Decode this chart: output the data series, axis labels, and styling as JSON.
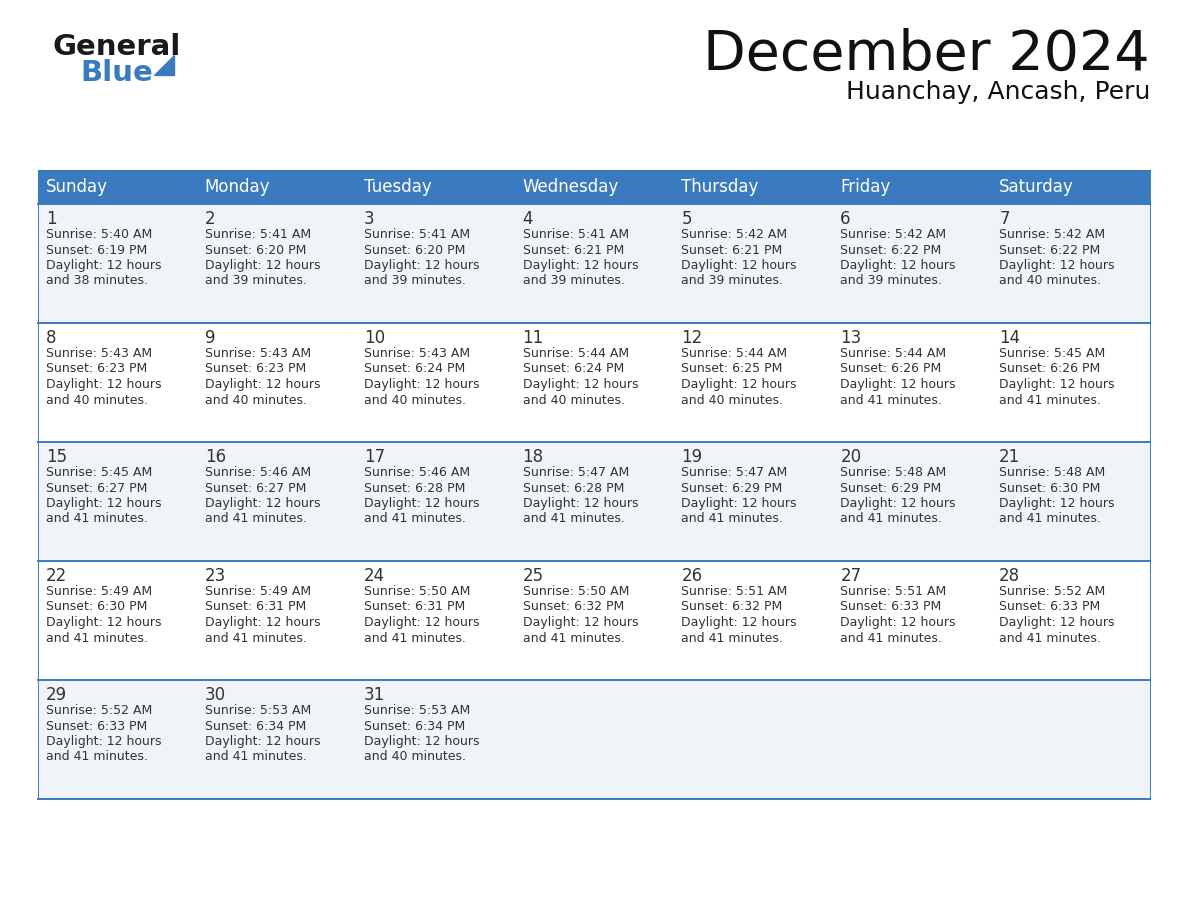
{
  "title": "December 2024",
  "subtitle": "Huanchay, Ancash, Peru",
  "header_color": "#3a7bbf",
  "header_text_color": "#ffffff",
  "bg_color": "#ffffff",
  "cell_bg_even": "#f0f4f8",
  "cell_bg_odd": "#ffffff",
  "border_color": "#3a7bbf",
  "text_color": "#333333",
  "day_names": [
    "Sunday",
    "Monday",
    "Tuesday",
    "Wednesday",
    "Thursday",
    "Friday",
    "Saturday"
  ],
  "weeks": [
    [
      {
        "day": 1,
        "sunrise": "5:40 AM",
        "sunset": "6:19 PM",
        "daylight": "12 hours and 38 minutes."
      },
      {
        "day": 2,
        "sunrise": "5:41 AM",
        "sunset": "6:20 PM",
        "daylight": "12 hours and 39 minutes."
      },
      {
        "day": 3,
        "sunrise": "5:41 AM",
        "sunset": "6:20 PM",
        "daylight": "12 hours and 39 minutes."
      },
      {
        "day": 4,
        "sunrise": "5:41 AM",
        "sunset": "6:21 PM",
        "daylight": "12 hours and 39 minutes."
      },
      {
        "day": 5,
        "sunrise": "5:42 AM",
        "sunset": "6:21 PM",
        "daylight": "12 hours and 39 minutes."
      },
      {
        "day": 6,
        "sunrise": "5:42 AM",
        "sunset": "6:22 PM",
        "daylight": "12 hours and 39 minutes."
      },
      {
        "day": 7,
        "sunrise": "5:42 AM",
        "sunset": "6:22 PM",
        "daylight": "12 hours and 40 minutes."
      }
    ],
    [
      {
        "day": 8,
        "sunrise": "5:43 AM",
        "sunset": "6:23 PM",
        "daylight": "12 hours and 40 minutes."
      },
      {
        "day": 9,
        "sunrise": "5:43 AM",
        "sunset": "6:23 PM",
        "daylight": "12 hours and 40 minutes."
      },
      {
        "day": 10,
        "sunrise": "5:43 AM",
        "sunset": "6:24 PM",
        "daylight": "12 hours and 40 minutes."
      },
      {
        "day": 11,
        "sunrise": "5:44 AM",
        "sunset": "6:24 PM",
        "daylight": "12 hours and 40 minutes."
      },
      {
        "day": 12,
        "sunrise": "5:44 AM",
        "sunset": "6:25 PM",
        "daylight": "12 hours and 40 minutes."
      },
      {
        "day": 13,
        "sunrise": "5:44 AM",
        "sunset": "6:26 PM",
        "daylight": "12 hours and 41 minutes."
      },
      {
        "day": 14,
        "sunrise": "5:45 AM",
        "sunset": "6:26 PM",
        "daylight": "12 hours and 41 minutes."
      }
    ],
    [
      {
        "day": 15,
        "sunrise": "5:45 AM",
        "sunset": "6:27 PM",
        "daylight": "12 hours and 41 minutes."
      },
      {
        "day": 16,
        "sunrise": "5:46 AM",
        "sunset": "6:27 PM",
        "daylight": "12 hours and 41 minutes."
      },
      {
        "day": 17,
        "sunrise": "5:46 AM",
        "sunset": "6:28 PM",
        "daylight": "12 hours and 41 minutes."
      },
      {
        "day": 18,
        "sunrise": "5:47 AM",
        "sunset": "6:28 PM",
        "daylight": "12 hours and 41 minutes."
      },
      {
        "day": 19,
        "sunrise": "5:47 AM",
        "sunset": "6:29 PM",
        "daylight": "12 hours and 41 minutes."
      },
      {
        "day": 20,
        "sunrise": "5:48 AM",
        "sunset": "6:29 PM",
        "daylight": "12 hours and 41 minutes."
      },
      {
        "day": 21,
        "sunrise": "5:48 AM",
        "sunset": "6:30 PM",
        "daylight": "12 hours and 41 minutes."
      }
    ],
    [
      {
        "day": 22,
        "sunrise": "5:49 AM",
        "sunset": "6:30 PM",
        "daylight": "12 hours and 41 minutes."
      },
      {
        "day": 23,
        "sunrise": "5:49 AM",
        "sunset": "6:31 PM",
        "daylight": "12 hours and 41 minutes."
      },
      {
        "day": 24,
        "sunrise": "5:50 AM",
        "sunset": "6:31 PM",
        "daylight": "12 hours and 41 minutes."
      },
      {
        "day": 25,
        "sunrise": "5:50 AM",
        "sunset": "6:32 PM",
        "daylight": "12 hours and 41 minutes."
      },
      {
        "day": 26,
        "sunrise": "5:51 AM",
        "sunset": "6:32 PM",
        "daylight": "12 hours and 41 minutes."
      },
      {
        "day": 27,
        "sunrise": "5:51 AM",
        "sunset": "6:33 PM",
        "daylight": "12 hours and 41 minutes."
      },
      {
        "day": 28,
        "sunrise": "5:52 AM",
        "sunset": "6:33 PM",
        "daylight": "12 hours and 41 minutes."
      }
    ],
    [
      {
        "day": 29,
        "sunrise": "5:52 AM",
        "sunset": "6:33 PM",
        "daylight": "12 hours and 41 minutes."
      },
      {
        "day": 30,
        "sunrise": "5:53 AM",
        "sunset": "6:34 PM",
        "daylight": "12 hours and 41 minutes."
      },
      {
        "day": 31,
        "sunrise": "5:53 AM",
        "sunset": "6:34 PM",
        "daylight": "12 hours and 40 minutes."
      },
      null,
      null,
      null,
      null
    ]
  ],
  "logo_general_color": "#1a1a1a",
  "logo_blue_color": "#3a7bbf",
  "title_fontsize": 40,
  "subtitle_fontsize": 18,
  "header_fontsize": 12,
  "day_num_fontsize": 12,
  "cell_text_fontsize": 9
}
